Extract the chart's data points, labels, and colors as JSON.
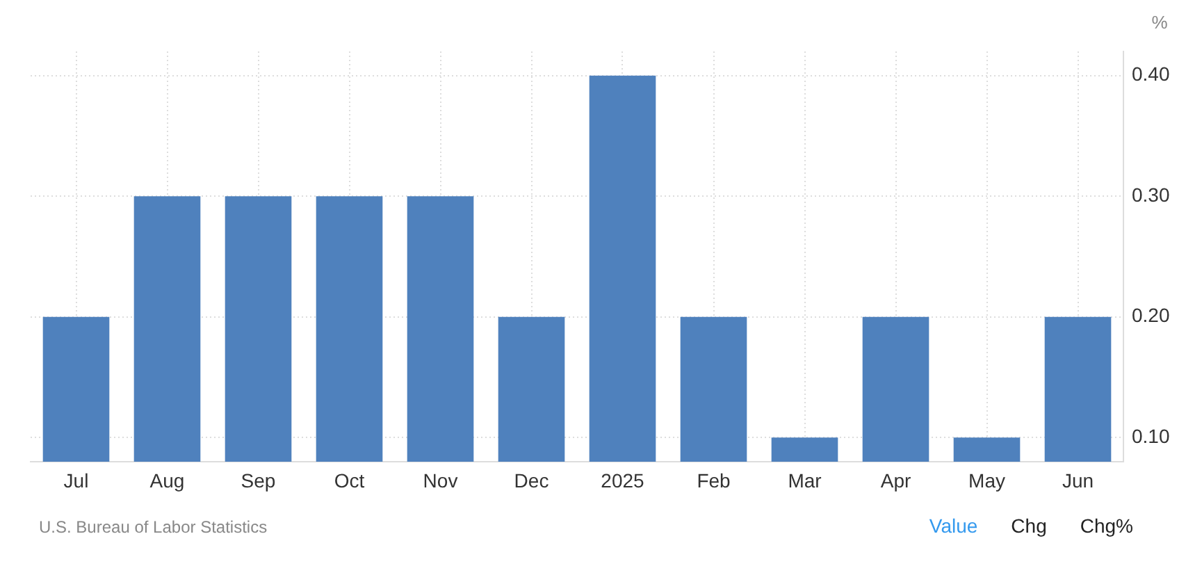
{
  "chart_data": {
    "type": "bar",
    "ylabel": "%",
    "categories": [
      "Jul",
      "Aug",
      "Sep",
      "Oct",
      "Nov",
      "Dec",
      "2025",
      "Feb",
      "Mar",
      "Apr",
      "May",
      "Jun"
    ],
    "values": [
      0.2,
      0.3,
      0.3,
      0.3,
      0.3,
      0.2,
      0.4,
      0.2,
      0.1,
      0.2,
      0.1,
      0.2
    ],
    "color": "#4f81bd",
    "ylim": [
      0.08,
      0.42
    ],
    "yticks": [
      {
        "value": 0.1,
        "label": "0.10"
      },
      {
        "value": 0.2,
        "label": "0.20"
      },
      {
        "value": 0.3,
        "label": "0.30"
      },
      {
        "value": 0.4,
        "label": "0.40"
      }
    ],
    "grid": true,
    "legend": false,
    "annotations": [
      "U.S. Bureau of Labor Statistics",
      "Value",
      "Chg",
      "Chg%"
    ]
  }
}
